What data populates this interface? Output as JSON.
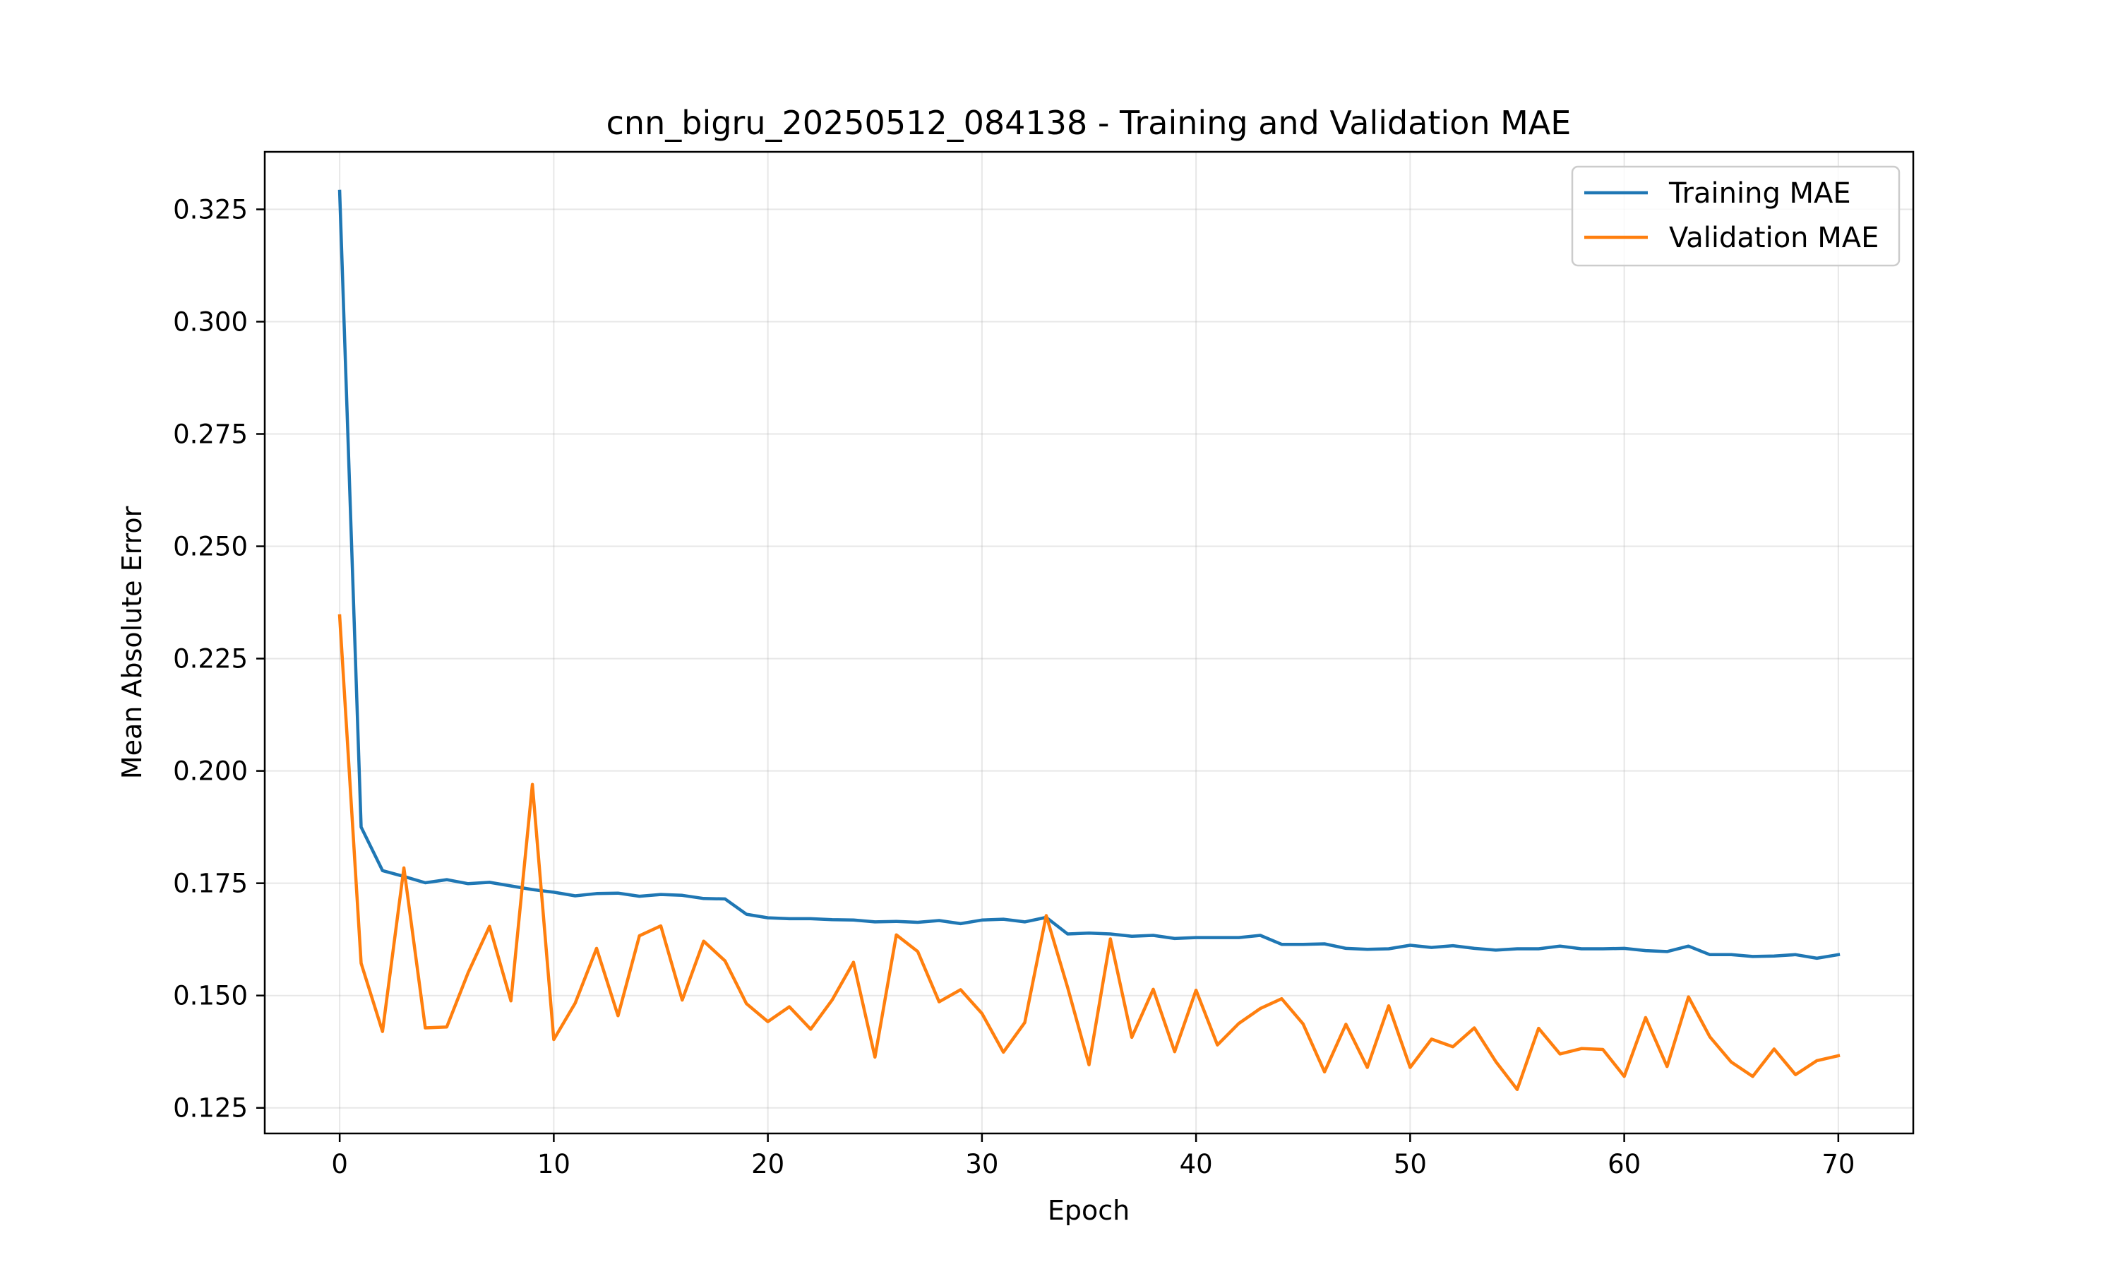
{
  "chart_data": {
    "type": "line",
    "title": "cnn_bigru_20250512_084138 - Training and Validation MAE",
    "xlabel": "Epoch",
    "ylabel": "Mean Absolute Error",
    "xlim": [
      -3.5,
      73.5
    ],
    "ylim": [
      0.1193,
      0.3378
    ],
    "xticks": [
      0,
      10,
      20,
      30,
      40,
      50,
      60,
      70
    ],
    "xtick_labels": [
      "0",
      "10",
      "20",
      "30",
      "40",
      "50",
      "60",
      "70"
    ],
    "yticks": [
      0.125,
      0.15,
      0.175,
      0.2,
      0.225,
      0.25,
      0.275,
      0.3,
      0.325
    ],
    "ytick_labels": [
      "0.125",
      "0.150",
      "0.175",
      "0.200",
      "0.225",
      "0.250",
      "0.275",
      "0.300",
      "0.325"
    ],
    "grid": true,
    "legend_position": "upper right",
    "x": [
      0,
      1,
      2,
      3,
      4,
      5,
      6,
      7,
      8,
      9,
      10,
      11,
      12,
      13,
      14,
      15,
      16,
      17,
      18,
      19,
      20,
      21,
      22,
      23,
      24,
      25,
      26,
      27,
      28,
      29,
      30,
      31,
      32,
      33,
      34,
      35,
      36,
      37,
      38,
      39,
      40,
      41,
      42,
      43,
      44,
      45,
      46,
      47,
      48,
      49,
      50,
      51,
      52,
      53,
      54,
      55,
      56,
      57,
      58,
      59,
      60,
      61,
      62,
      63,
      64,
      65,
      66,
      67,
      68,
      69,
      70
    ],
    "series": [
      {
        "name": "Training MAE",
        "color": "#1f77b4",
        "values": [
          0.329,
          0.1875,
          0.1778,
          0.1765,
          0.1751,
          0.1758,
          0.1749,
          0.1752,
          0.1744,
          0.1736,
          0.173,
          0.1722,
          0.1727,
          0.1728,
          0.1721,
          0.1725,
          0.1723,
          0.1716,
          0.1715,
          0.1681,
          0.1673,
          0.1671,
          0.1671,
          0.1669,
          0.1668,
          0.1664,
          0.1665,
          0.1663,
          0.1667,
          0.166,
          0.1668,
          0.167,
          0.1664,
          0.1674,
          0.1637,
          0.1639,
          0.1637,
          0.1632,
          0.1634,
          0.1627,
          0.1629,
          0.1629,
          0.1629,
          0.1634,
          0.1614,
          0.1614,
          0.1615,
          0.1605,
          0.1603,
          0.1604,
          0.1612,
          0.1607,
          0.1611,
          0.1605,
          0.1601,
          0.1604,
          0.1604,
          0.161,
          0.1604,
          0.1604,
          0.1605,
          0.16,
          0.1598,
          0.161,
          0.1591,
          0.1591,
          0.1587,
          0.1588,
          0.1591,
          0.1583,
          0.1591
        ]
      },
      {
        "name": "Validation MAE",
        "color": "#ff7f0e",
        "values": [
          0.2345,
          0.1572,
          0.142,
          0.1784,
          0.1428,
          0.143,
          0.1551,
          0.1654,
          0.1488,
          0.197,
          0.1402,
          0.1483,
          0.1605,
          0.1455,
          0.1633,
          0.1655,
          0.149,
          0.1621,
          0.1577,
          0.1482,
          0.1442,
          0.1475,
          0.1425,
          0.149,
          0.1574,
          0.1363,
          0.1635,
          0.1598,
          0.1486,
          0.1513,
          0.146,
          0.1374,
          0.144,
          0.1678,
          0.1518,
          0.1346,
          0.1626,
          0.1407,
          0.1514,
          0.1375,
          0.1512,
          0.139,
          0.1438,
          0.1471,
          0.1493,
          0.1437,
          0.133,
          0.1436,
          0.134,
          0.1477,
          0.134,
          0.1403,
          0.1386,
          0.1428,
          0.1353,
          0.1291,
          0.1427,
          0.137,
          0.1382,
          0.138,
          0.132,
          0.1451,
          0.1342,
          0.1497,
          0.1408,
          0.1352,
          0.132,
          0.1381,
          0.1324,
          0.1355,
          0.1366
        ]
      }
    ]
  }
}
